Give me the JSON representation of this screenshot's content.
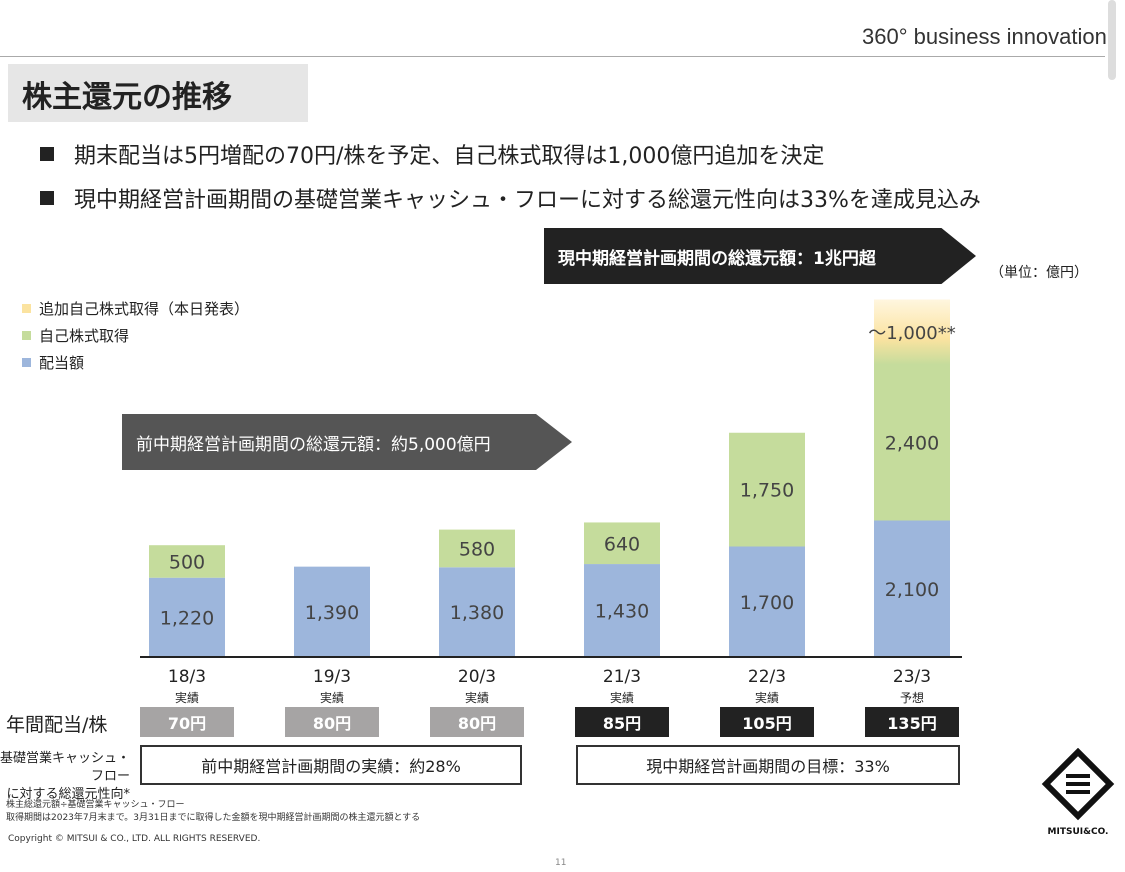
{
  "header": {
    "tagline": "360° business innovation.",
    "title": "株主還元の推移"
  },
  "bullets": [
    "期末配当は5円増配の70円/株を予定、自己株式取得は1,000億円追加を決定",
    "現中期経営計画期間の基礎営業キャッシュ・フローに対する総還元性向は33%を達成見込み"
  ],
  "banners": {
    "current": "現中期経営計画期間の総還元額：1兆円超",
    "previous": "前中期経営計画期間の総還元額：約5,000億円"
  },
  "unit": "（単位：億円）",
  "chart_data": {
    "type": "bar",
    "stacked": true,
    "categories": [
      "18/3",
      "19/3",
      "20/3",
      "21/3",
      "22/3",
      "23/3"
    ],
    "category_sublabels": [
      "実績",
      "実績",
      "実績",
      "実績",
      "実績",
      "予想"
    ],
    "series": [
      {
        "name": "配当額",
        "color": "#9db6dc",
        "values": [
          1220,
          1390,
          1380,
          1430,
          1700,
          2100
        ],
        "labels": [
          "1,220",
          "1,390",
          "1,380",
          "1,430",
          "1,700",
          "2,100"
        ]
      },
      {
        "name": "自己株式取得",
        "color": "#c5dc9c",
        "values": [
          500,
          0,
          580,
          640,
          1750,
          2400
        ],
        "labels": [
          "500",
          "",
          "580",
          "640",
          "1,750",
          "2,400"
        ]
      },
      {
        "name": "追加自己株式取得（本日発表）",
        "color": "#fbe3a0",
        "values": [
          0,
          0,
          0,
          0,
          0,
          1000
        ],
        "labels": [
          "",
          "",
          "",
          "",
          "",
          "～1,000**"
        ]
      }
    ],
    "legend": "top-left",
    "grid": false,
    "ylim": [
      0,
      6000
    ]
  },
  "dividends": {
    "label": "年間配当/株",
    "values": [
      "70円",
      "80円",
      "80円",
      "85円",
      "105円",
      "135円"
    ],
    "colors": [
      "#a6a4a4",
      "#a6a4a4",
      "#a6a4a4",
      "#222222",
      "#222222",
      "#222222"
    ]
  },
  "payout": {
    "label": "基礎営業キャッシュ・フロー\nに対する総還元性向*",
    "previous": "前中期経営計画期間の実績：約28%",
    "current": "現中期経営計画期間の目標：33%"
  },
  "notes": [
    "株主総還元額÷基礎営業キャッシュ・フロー",
    "取得期間は2023年7月末まで。3月31日までに取得した金額を現中期経営計画期間の株主還元額とする"
  ],
  "copyright": "Copyright © MITSUI & CO., LTD. ALL RIGHTS RESERVED.",
  "page_number": "11",
  "logo_text": "MITSUI&CO."
}
